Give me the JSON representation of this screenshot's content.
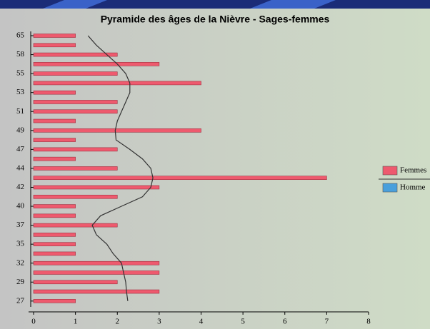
{
  "chart_data": {
    "type": "hbar",
    "title": "Pyramide des âges de la Nièvre - Sages-femmes",
    "categories": [
      "65",
      null,
      "58",
      null,
      "55",
      null,
      "53",
      null,
      "51",
      null,
      "49",
      null,
      "47",
      null,
      "44",
      null,
      "42",
      null,
      "40",
      null,
      "37",
      null,
      "35",
      null,
      "32",
      null,
      "29",
      null,
      "27"
    ],
    "series": [
      {
        "name": "Femmes",
        "color": "#ee5a6e",
        "values": [
          1,
          1,
          2,
          3,
          2,
          4,
          1,
          2,
          2,
          1,
          4,
          1,
          2,
          1,
          2,
          7,
          3,
          2,
          1,
          1,
          2,
          1,
          1,
          1,
          3,
          3,
          2,
          3,
          1
        ]
      },
      {
        "name": "Homme",
        "color": "#4aa0dc",
        "values": [
          0,
          0,
          0,
          0,
          0,
          0,
          0,
          0,
          0,
          0,
          0,
          0,
          0,
          0,
          0,
          0,
          0,
          0,
          0,
          0,
          0,
          0,
          0,
          0,
          0,
          0,
          0,
          0,
          0
        ]
      }
    ],
    "curve": {
      "color": "#333333",
      "values": [
        1.3,
        1.5,
        1.75,
        2.0,
        2.2,
        2.3,
        2.3,
        2.2,
        2.1,
        2.0,
        1.95,
        1.97,
        2.3,
        2.6,
        2.8,
        2.85,
        2.8,
        2.6,
        2.1,
        1.6,
        1.4,
        1.5,
        1.75,
        1.9,
        2.1,
        2.15,
        2.2,
        2.22,
        2.25
      ]
    },
    "xlim": [
      0,
      8
    ],
    "xticks": [
      0,
      1,
      2,
      3,
      4,
      5,
      6,
      7,
      8
    ],
    "legend": "right"
  }
}
